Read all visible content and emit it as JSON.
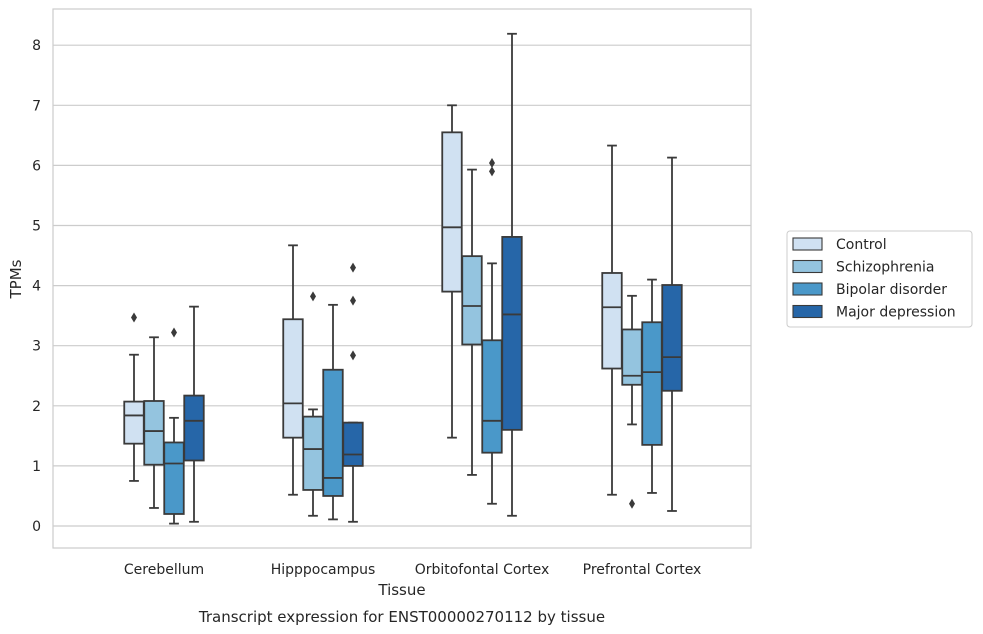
{
  "caption": "Transcript expression for ENST00000270112 by tissue",
  "chart_data": {
    "type": "boxplot",
    "xlabel": "Tissue",
    "ylabel": "TPMs",
    "ylim": [
      -0.35,
      8.6
    ],
    "yticks": [
      0,
      1,
      2,
      3,
      4,
      5,
      6,
      7,
      8
    ],
    "grid": true,
    "legend_position": "right, outside plot",
    "categories": [
      "Cerebellum",
      "Hipppocampus",
      "Orbitofontal Cortex",
      "Prefrontal Cortex"
    ],
    "series": [
      {
        "name": "Control",
        "color": "#d0e1f2",
        "boxes": [
          {
            "whislo": 0.75,
            "q1": 1.37,
            "med": 1.84,
            "q3": 2.07,
            "whishi": 2.85,
            "fliers": [
              3.47
            ]
          },
          {
            "whislo": 0.52,
            "q1": 1.47,
            "med": 2.04,
            "q3": 3.44,
            "whishi": 4.67,
            "fliers": []
          },
          {
            "whislo": 1.47,
            "q1": 3.9,
            "med": 4.97,
            "q3": 6.55,
            "whishi": 7.0,
            "fliers": []
          },
          {
            "whislo": 0.52,
            "q1": 2.62,
            "med": 3.64,
            "q3": 4.21,
            "whishi": 6.33,
            "fliers": []
          }
        ]
      },
      {
        "name": "Schizophrenia",
        "color": "#94c4df",
        "boxes": [
          {
            "whislo": 0.3,
            "q1": 1.02,
            "med": 1.58,
            "q3": 2.08,
            "whishi": 3.14,
            "fliers": []
          },
          {
            "whislo": 0.17,
            "q1": 0.6,
            "med": 1.28,
            "q3": 1.82,
            "whishi": 1.94,
            "fliers": [
              3.82
            ]
          },
          {
            "whislo": 0.85,
            "q1": 3.02,
            "med": 3.66,
            "q3": 4.49,
            "whishi": 5.93,
            "fliers": []
          },
          {
            "whislo": 1.69,
            "q1": 2.35,
            "med": 2.5,
            "q3": 3.27,
            "whishi": 3.83,
            "fliers": [
              0.37
            ]
          }
        ]
      },
      {
        "name": "Bipolar disorder",
        "color": "#4a98c9",
        "boxes": [
          {
            "whislo": 0.04,
            "q1": 0.2,
            "med": 1.04,
            "q3": 1.39,
            "whishi": 1.8,
            "fliers": [
              3.22
            ]
          },
          {
            "whislo": 0.11,
            "q1": 0.5,
            "med": 0.8,
            "q3": 2.6,
            "whishi": 3.68,
            "fliers": []
          },
          {
            "whislo": 0.37,
            "q1": 1.22,
            "med": 1.75,
            "q3": 3.09,
            "whishi": 4.37,
            "fliers": [
              5.9,
              6.04
            ]
          },
          {
            "whislo": 0.55,
            "q1": 1.35,
            "med": 2.56,
            "q3": 3.39,
            "whishi": 4.1,
            "fliers": []
          }
        ]
      },
      {
        "name": "Major depression",
        "color": "#2666a8",
        "boxes": [
          {
            "whislo": 0.07,
            "q1": 1.09,
            "med": 1.75,
            "q3": 2.17,
            "whishi": 3.65,
            "fliers": []
          },
          {
            "whislo": 0.07,
            "q1": 1.0,
            "med": 1.19,
            "q3": 1.72,
            "whishi": 1.72,
            "fliers": [
              2.84,
              3.75,
              4.3
            ]
          },
          {
            "whislo": 0.17,
            "q1": 1.6,
            "med": 3.52,
            "q3": 4.81,
            "whishi": 8.19,
            "fliers": []
          },
          {
            "whislo": 0.25,
            "q1": 2.25,
            "med": 2.81,
            "q3": 4.01,
            "whishi": 6.13,
            "fliers": []
          }
        ]
      }
    ]
  }
}
